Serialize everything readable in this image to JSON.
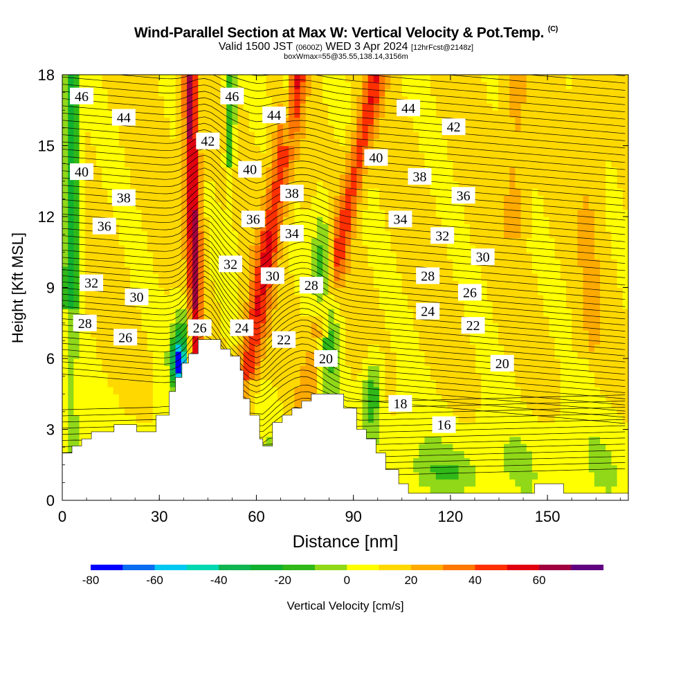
{
  "header": {
    "title": "Wind-Parallel Section at Max W: Vertical Velocity & Pot.Temp.",
    "title_suffix": "(C)",
    "valid_prefix": "Valid 1500 JST",
    "valid_z": "(0600Z)",
    "valid_date": "WED 3 Apr 2024",
    "forecast": "[12hrFcst@2148z]",
    "box_info": "boxWmax=55@35.55,138.14,3156m"
  },
  "chart_data": {
    "type": "heatmap",
    "xlabel": "Distance [nm]",
    "ylabel": "Height [Kft MSL]",
    "xlim": [
      0,
      175
    ],
    "ylim": [
      0,
      18
    ],
    "x_ticks": [
      0,
      30,
      60,
      90,
      120,
      150
    ],
    "y_ticks": [
      0,
      3,
      6,
      9,
      12,
      15,
      18
    ],
    "colorbar": {
      "label": "Vertical Velocity [cm/s]",
      "ticks": [
        -80,
        -60,
        -40,
        -20,
        0,
        20,
        40,
        60
      ],
      "boundaries": [
        -80,
        -70,
        -60,
        -50,
        -40,
        -30,
        -20,
        -10,
        0,
        10,
        20,
        30,
        40,
        50,
        60,
        70
      ],
      "colors": [
        "#0000ff",
        "#0a6cf0",
        "#00c8f0",
        "#00d8b0",
        "#10b450",
        "#10b030",
        "#30b818",
        "#90d818",
        "#ffff00",
        "#ffd800",
        "#ffaa00",
        "#ff7800",
        "#ff3000",
        "#e00010",
        "#a00040",
        "#600080"
      ]
    },
    "updraft_bands": [
      {
        "x": 42,
        "w": 60
      },
      {
        "x": 66,
        "w": 45
      },
      {
        "x": 92,
        "w": 40
      }
    ],
    "downdraft_bands": [
      {
        "x": 5,
        "w": -25
      },
      {
        "x": 50,
        "w": -25
      },
      {
        "x": 80,
        "w": -30
      },
      {
        "x": 36,
        "w": -70
      }
    ],
    "terrain": [
      [
        0,
        2.0
      ],
      [
        3,
        2.0
      ],
      [
        3,
        2.3
      ],
      [
        6,
        2.3
      ],
      [
        6,
        2.6
      ],
      [
        9,
        2.6
      ],
      [
        9,
        2.9
      ],
      [
        16,
        2.9
      ],
      [
        16,
        3.2
      ],
      [
        23,
        3.2
      ],
      [
        23,
        2.9
      ],
      [
        29,
        2.9
      ],
      [
        29,
        3.6
      ],
      [
        33,
        3.6
      ],
      [
        33,
        4.6
      ],
      [
        35,
        4.6
      ],
      [
        35,
        5.2
      ],
      [
        37,
        5.2
      ],
      [
        37,
        5.8
      ],
      [
        39,
        5.8
      ],
      [
        39,
        6.2
      ],
      [
        42,
        6.2
      ],
      [
        42,
        6.8
      ],
      [
        49,
        6.8
      ],
      [
        49,
        6.4
      ],
      [
        52,
        6.4
      ],
      [
        52,
        6.1
      ],
      [
        55,
        6.1
      ],
      [
        55,
        5.5
      ],
      [
        56,
        5.5
      ],
      [
        56,
        4.3
      ],
      [
        58,
        4.3
      ],
      [
        58,
        3.6
      ],
      [
        61,
        3.6
      ],
      [
        61,
        2.6
      ],
      [
        62,
        2.6
      ],
      [
        62,
        2.3
      ],
      [
        65,
        2.3
      ],
      [
        65,
        3.3
      ],
      [
        68,
        3.3
      ],
      [
        68,
        3.6
      ],
      [
        71,
        3.6
      ],
      [
        71,
        3.9
      ],
      [
        74,
        3.9
      ],
      [
        74,
        4.2
      ],
      [
        77,
        4.2
      ],
      [
        77,
        4.5
      ],
      [
        87,
        4.5
      ],
      [
        87,
        3.9
      ],
      [
        91,
        3.9
      ],
      [
        91,
        3.0
      ],
      [
        94,
        3.0
      ],
      [
        94,
        2.6
      ],
      [
        97,
        2.6
      ],
      [
        97,
        2.0
      ],
      [
        100,
        2.0
      ],
      [
        100,
        1.3
      ],
      [
        104,
        1.3
      ],
      [
        104,
        0.7
      ],
      [
        107,
        0.7
      ],
      [
        107,
        0.3
      ],
      [
        146,
        0.3
      ],
      [
        146,
        0.7
      ],
      [
        155,
        0.7
      ],
      [
        155,
        0.3
      ],
      [
        175,
        0.3
      ]
    ],
    "contour_labels": [
      {
        "t": "46",
        "x": 6,
        "y": 17.1
      },
      {
        "t": "44",
        "x": 19,
        "y": 16.2
      },
      {
        "t": "40",
        "x": 6,
        "y": 13.9
      },
      {
        "t": "38",
        "x": 19,
        "y": 12.8
      },
      {
        "t": "36",
        "x": 13,
        "y": 11.6
      },
      {
        "t": "32",
        "x": 9,
        "y": 9.2
      },
      {
        "t": "30",
        "x": 23,
        "y": 8.6
      },
      {
        "t": "28",
        "x": 7,
        "y": 7.5
      },
      {
        "t": "26",
        "x": 19.5,
        "y": 6.9
      },
      {
        "t": "46",
        "x": 52.5,
        "y": 17.1
      },
      {
        "t": "42",
        "x": 45,
        "y": 15.2
      },
      {
        "t": "44",
        "x": 65.5,
        "y": 16.3
      },
      {
        "t": "40",
        "x": 58,
        "y": 14.0
      },
      {
        "t": "38",
        "x": 71,
        "y": 13.0
      },
      {
        "t": "36",
        "x": 59,
        "y": 11.9
      },
      {
        "t": "34",
        "x": 71,
        "y": 11.3
      },
      {
        "t": "32",
        "x": 52,
        "y": 10.0
      },
      {
        "t": "30",
        "x": 65,
        "y": 9.5
      },
      {
        "t": "28",
        "x": 77,
        "y": 9.1
      },
      {
        "t": "26",
        "x": 42.5,
        "y": 7.3
      },
      {
        "t": "24",
        "x": 55.5,
        "y": 7.3
      },
      {
        "t": "22",
        "x": 68.5,
        "y": 6.8
      },
      {
        "t": "20",
        "x": 81.5,
        "y": 6.0
      },
      {
        "t": "44",
        "x": 107,
        "y": 16.6
      },
      {
        "t": "42",
        "x": 121,
        "y": 15.8
      },
      {
        "t": "40",
        "x": 97,
        "y": 14.5
      },
      {
        "t": "38",
        "x": 110.5,
        "y": 13.7
      },
      {
        "t": "36",
        "x": 124,
        "y": 12.9
      },
      {
        "t": "34",
        "x": 104.5,
        "y": 11.9
      },
      {
        "t": "32",
        "x": 117.5,
        "y": 11.2
      },
      {
        "t": "30",
        "x": 130,
        "y": 10.3
      },
      {
        "t": "28",
        "x": 113,
        "y": 9.5
      },
      {
        "t": "26",
        "x": 126,
        "y": 8.8
      },
      {
        "t": "24",
        "x": 113,
        "y": 8.0
      },
      {
        "t": "22",
        "x": 127,
        "y": 7.4
      },
      {
        "t": "20",
        "x": 136,
        "y": 5.8
      },
      {
        "t": "18",
        "x": 104.5,
        "y": 4.1
      },
      {
        "t": "16",
        "x": 118,
        "y": 3.2
      }
    ]
  }
}
